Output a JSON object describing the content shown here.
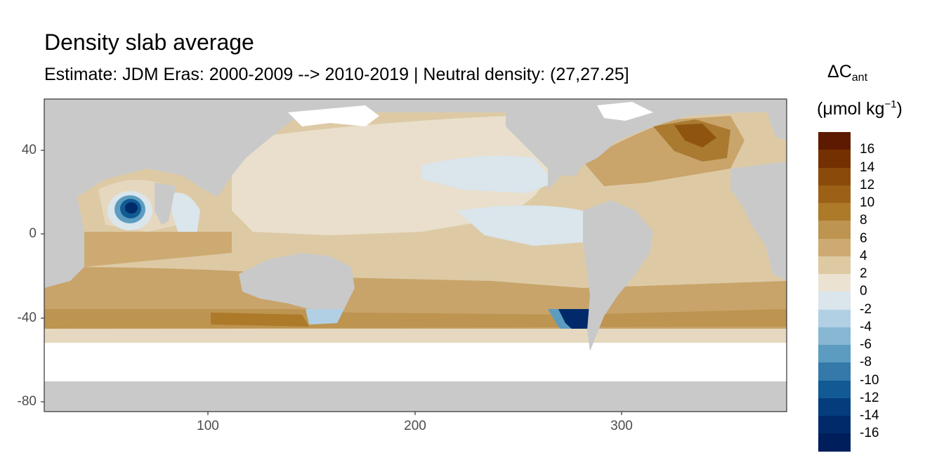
{
  "chart_data": {
    "type": "heatmap",
    "title": "Density slab average",
    "subtitle": "Estimate: JDM Eras: 2000-2009 --> 2010-2019 | Neutral density: (27,27.25]",
    "xlabel": "",
    "ylabel": "",
    "xlim": [
      20,
      380
    ],
    "ylim": [
      -85,
      65
    ],
    "x_ticks": [
      100,
      200,
      300
    ],
    "y_ticks": [
      40,
      0,
      -40,
      -80
    ],
    "legend": {
      "title_main": "ΔC",
      "title_sub": "ant",
      "unit_prefix": "(μmol kg",
      "unit_exponent": "−1",
      "unit_suffix": ")",
      "placement": "right",
      "labels": [
        "16",
        "14",
        "12",
        "10",
        "8",
        "6",
        "4",
        "2",
        "0",
        "-2",
        "-4",
        "-6",
        "-8",
        "-10",
        "-12",
        "-14",
        "-16"
      ],
      "colors": [
        "#5e1a00",
        "#743000",
        "#8a4a0a",
        "#9c6116",
        "#ad7a2a",
        "#bd9450",
        "#cdaa72",
        "#ddc9a2",
        "#ece2d2",
        "#dae5ec",
        "#b2d0e3",
        "#87b7d3",
        "#5c9cc0",
        "#3479aa",
        "#115a93",
        "#043c7c",
        "#002a69",
        "#001d5c"
      ]
    },
    "annotations": {
      "arabian_sea_min": {
        "lon": 62,
        "lat": 14,
        "value": -13
      },
      "south_pacific_min": {
        "lon": 279,
        "lat": -43,
        "value": -17
      },
      "north_atlantic_max": {
        "lon": 325,
        "lat": 50,
        "value": 11
      },
      "southern_ocean_band": {
        "lat_range": [
          -40,
          -55
        ],
        "value": 6
      },
      "equatorial_pacific": {
        "lat_range": [
          -5,
          30
        ],
        "value": 1
      },
      "land_color": "#c9c9c9",
      "missing_color": "#ffffff"
    }
  }
}
